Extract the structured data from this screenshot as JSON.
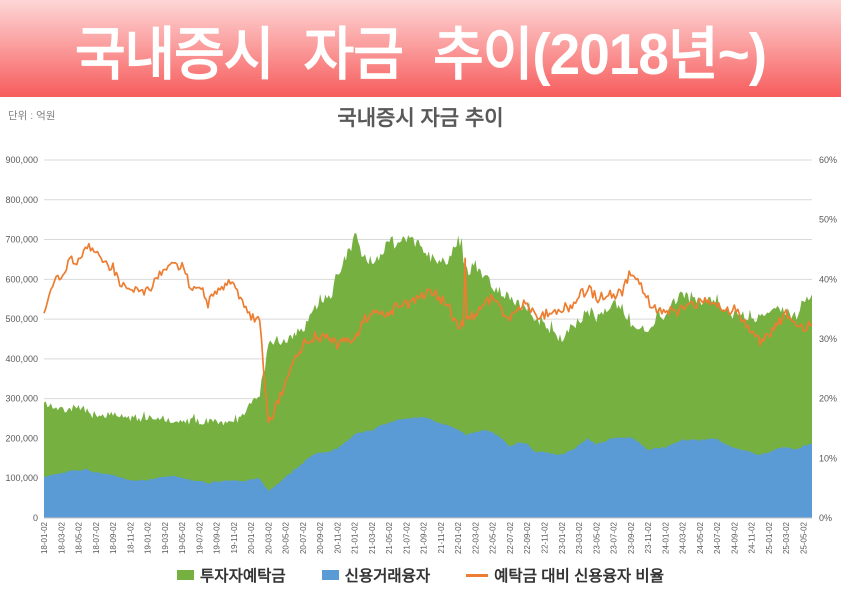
{
  "banner": {
    "title": "국내증시 자금 추이(2018년~)",
    "bg_top": "#fdd6d6",
    "bg_bottom": "#f75c5c",
    "text_color": "#ffffff"
  },
  "chart": {
    "title": "국내증시 자금 추이",
    "unit_label": "단위 : 억원"
  },
  "chart_data": {
    "type": "area",
    "title": "국내증시 자금 추이",
    "x_start": "2018-01",
    "x_end": "2025-06",
    "x_freq": "monthly",
    "grid": true,
    "legend_position": "bottom",
    "y_left": {
      "min": 0,
      "max": 900000,
      "step": 100000,
      "labels": [
        "0",
        "100,000",
        "200,000",
        "300,000",
        "400,000",
        "500,000",
        "600,000",
        "700,000",
        "800,000",
        "900,000"
      ]
    },
    "y_right": {
      "min": 0,
      "max": 60,
      "step": 10,
      "labels": [
        "0%",
        "10%",
        "20%",
        "30%",
        "40%",
        "50%",
        "60%"
      ]
    },
    "x_tick_labels": [
      "18-01-02",
      "18-03-02",
      "18-05-02",
      "18-07-02",
      "18-09-02",
      "18-11-02",
      "19-01-02",
      "19-03-02",
      "19-05-02",
      "19-07-02",
      "19-09-02",
      "19-11-02",
      "20-01-02",
      "20-03-02",
      "20-05-02",
      "20-07-02",
      "20-09-02",
      "20-11-02",
      "21-01-02",
      "21-03-02",
      "21-05-02",
      "21-07-02",
      "21-09-02",
      "21-11-02",
      "22-01-02",
      "22-03-02",
      "22-05-02",
      "22-07-02",
      "22-09-02",
      "22-11-02",
      "23-01-02",
      "23-03-02",
      "23-05-02",
      "23-07-02",
      "23-09-02",
      "23-11-02",
      "24-01-02",
      "24-03-02",
      "24-05-02",
      "24-07-02",
      "24-09-02",
      "24-11-02",
      "25-01-02",
      "25-03-02",
      "25-05-02"
    ],
    "series": [
      {
        "name": "투자자예탁금",
        "type": "area",
        "axis": "left",
        "color": "#76B041",
        "values": [
          295000,
          275000,
          270000,
          275000,
          280000,
          268000,
          255000,
          256000,
          262000,
          258000,
          248000,
          244000,
          252000,
          255000,
          248000,
          246000,
          240000,
          244000,
          242000,
          245000,
          242000,
          238000,
          236000,
          256000,
          288000,
          306000,
          430000,
          442000,
          442000,
          462000,
          474000,
          512000,
          548000,
          548000,
          602000,
          655000,
          700000,
          655000,
          642000,
          662000,
          702000,
          684000,
          700000,
          692000,
          678000,
          650000,
          648000,
          652000,
          705000,
          622000,
          632000,
          612000,
          582000,
          570000,
          548000,
          542000,
          520000,
          492000,
          492000,
          462000,
          452000,
          482000,
          492000,
          522000,
          502000,
          522000,
          542000,
          532000,
          485000,
          478000,
          470000,
          500000,
          502000,
          542000,
          562000,
          552000,
          542000,
          552000,
          552000,
          522000,
          502000,
          512000,
          492000,
          512000,
          522000,
          532000,
          512000,
          502000,
          542000,
          562000
        ]
      },
      {
        "name": "신용거래융자",
        "type": "area",
        "axis": "left",
        "color": "#5B9BD5",
        "values": [
          103000,
          108000,
          112000,
          118000,
          121000,
          122000,
          115000,
          110000,
          110000,
          100000,
          94000,
          94000,
          96000,
          101000,
          104000,
          105000,
          101000,
          95000,
          94000,
          88000,
          92000,
          93000,
          95000,
          92000,
          98000,
          100000,
          68000,
          85000,
          102000,
          121000,
          138000,
          157000,
          165000,
          166000,
          176000,
          192000,
          212000,
          216000,
          221000,
          232000,
          240000,
          246000,
          250000,
          251000,
          254000,
          246000,
          237000,
          231000,
          221000,
          209000,
          216000,
          221000,
          216000,
          201000,
          179000,
          191000,
          186000,
          166000,
          166000,
          161000,
          159000,
          170000,
          182000,
          201000,
          186000,
          192000,
          202000,
          202000,
          202000,
          189000,
          172000,
          176000,
          176000,
          186000,
          196000,
          196000,
          196000,
          200000,
          200000,
          184000,
          176000,
          171000,
          164000,
          159000,
          165000,
          176000,
          179000,
          171000,
          181000,
          186000
        ]
      },
      {
        "name": "예탁금 대비 신용융자 비율",
        "type": "line",
        "axis": "right",
        "color": "#ED7D31",
        "values": [
          34.5,
          39,
          41,
          43,
          43,
          45.5,
          45,
          43,
          42,
          39,
          38,
          38.5,
          38,
          40,
          42,
          42.5,
          42,
          39,
          39,
          36,
          38,
          39,
          40,
          36,
          34,
          33,
          15.5,
          19,
          23,
          26,
          29,
          30.5,
          30,
          30.5,
          29,
          29.5,
          30,
          33,
          34.5,
          35,
          34,
          36,
          35.5,
          36.5,
          37.5,
          38,
          36.5,
          35.5,
          31.5,
          33.5,
          34,
          36,
          37,
          35,
          33,
          35,
          36,
          34,
          34,
          35,
          35,
          35.5,
          37,
          38.5,
          37,
          37,
          37.5,
          38,
          41.5,
          39.5,
          36.5,
          35,
          35,
          34.5,
          35,
          35.5,
          36,
          36.5,
          36,
          35,
          35,
          33.5,
          31,
          29.5,
          30.5,
          32.5,
          34.5,
          32,
          31.5,
          32.5
        ]
      }
    ],
    "colors": {
      "grid": "#d9d9d9",
      "axis_text": "#595959",
      "title_text": "#595959"
    }
  }
}
